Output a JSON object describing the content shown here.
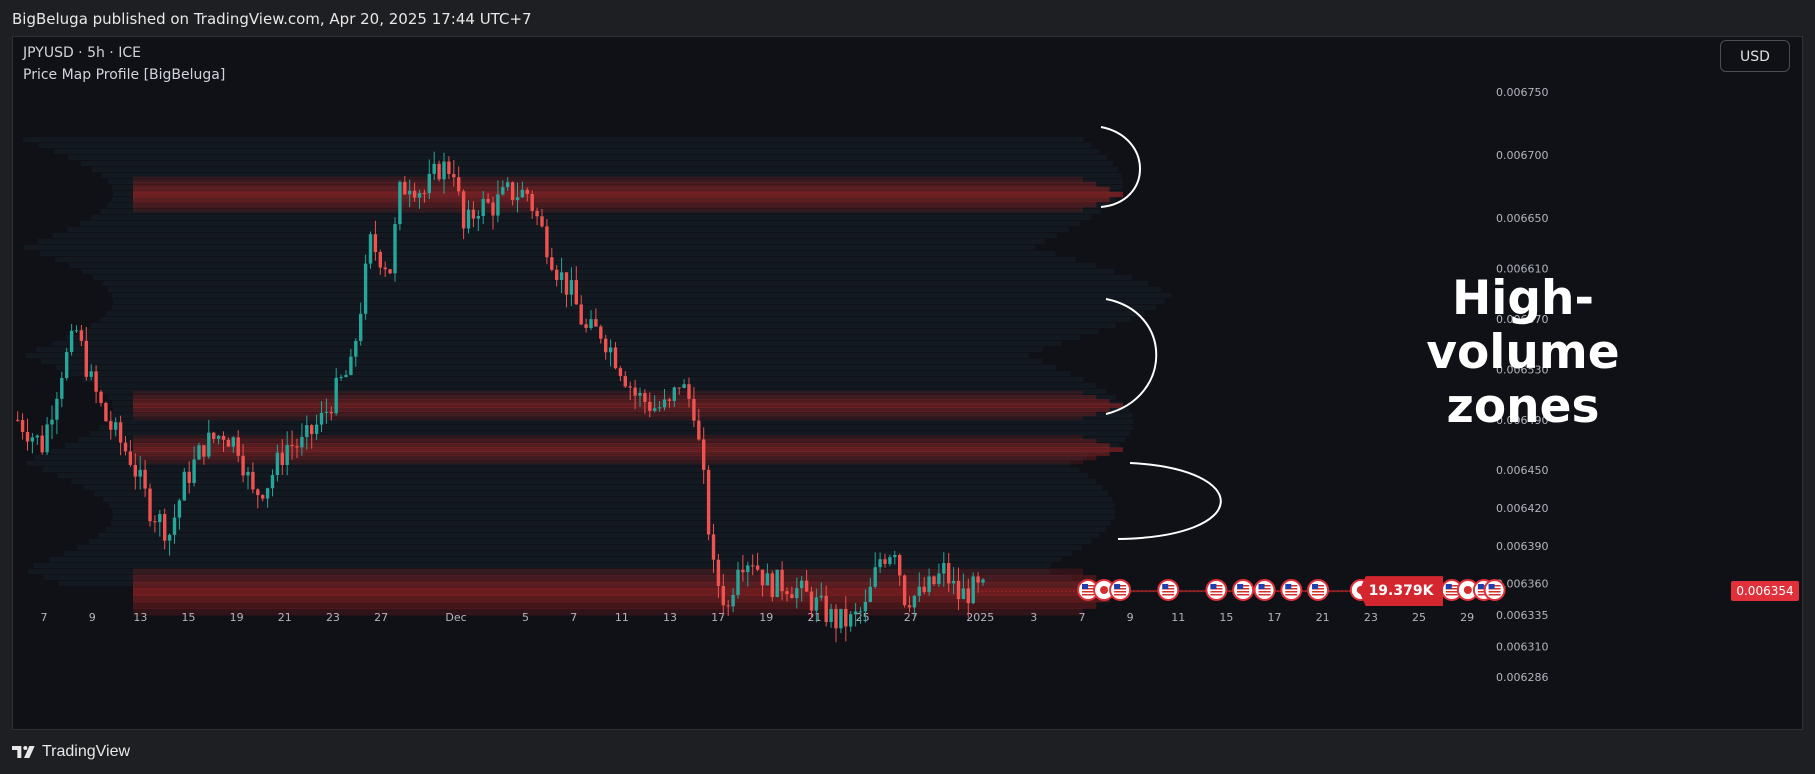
{
  "header": {
    "published_text": "BigBeluga published on TradingView.com, Apr 20, 2025 17:44 UTC+7"
  },
  "legend": {
    "symbol": "JPYUSD · 5h · ICE",
    "indicator": "Price Map Profile [BigBeluga]"
  },
  "currency_button": {
    "label": "USD"
  },
  "annotation": {
    "line1": "High-volume",
    "line2": "zones"
  },
  "footer": {
    "brand": "TradingView"
  },
  "colors": {
    "up": "#26a69a",
    "down": "#ef5350",
    "zone": "#d32f2f",
    "background": "#0f1116"
  },
  "chart_data": {
    "type": "candlestick",
    "symbol": "JPYUSD",
    "timeframe": "5h",
    "exchange": "ICE",
    "y_axis": {
      "range": [
        0.00627,
        0.00677
      ],
      "ticks": [
        "0.006750",
        "0.006700",
        "0.006650",
        "0.006610",
        "0.006570",
        "0.006530",
        "0.006490",
        "0.006450",
        "0.006420",
        "0.006390",
        "0.006360",
        "0.006335",
        "0.006310",
        "0.006286"
      ]
    },
    "x_axis": {
      "ticks": [
        {
          "label": "7",
          "bar": 3
        },
        {
          "label": "9",
          "bar": 12
        },
        {
          "label": "13",
          "bar": 21
        },
        {
          "label": "15",
          "bar": 30
        },
        {
          "label": "19",
          "bar": 39
        },
        {
          "label": "21",
          "bar": 48
        },
        {
          "label": "23",
          "bar": 57
        },
        {
          "label": "27",
          "bar": 66
        },
        {
          "label": "Dec",
          "bar": 80
        },
        {
          "label": "5",
          "bar": 93
        },
        {
          "label": "7",
          "bar": 102
        },
        {
          "label": "11",
          "bar": 111
        },
        {
          "label": "13",
          "bar": 120
        },
        {
          "label": "17",
          "bar": 129
        },
        {
          "label": "19",
          "bar": 138
        },
        {
          "label": "21",
          "bar": 147
        },
        {
          "label": "25",
          "bar": 156
        },
        {
          "label": "27",
          "bar": 165
        },
        {
          "label": "2025",
          "bar": 178
        },
        {
          "label": "3",
          "bar": 188
        },
        {
          "label": "7",
          "bar": 197
        },
        {
          "label": "9",
          "bar": 206
        },
        {
          "label": "11",
          "bar": 215
        },
        {
          "label": "15",
          "bar": 224
        },
        {
          "label": "17",
          "bar": 233
        },
        {
          "label": "21",
          "bar": 242
        },
        {
          "label": "23",
          "bar": 251
        },
        {
          "label": "25",
          "bar": 260
        },
        {
          "label": "29",
          "bar": 269
        }
      ],
      "total_bars": 276
    },
    "last_price": "0.006354",
    "last_price_value": 0.006354,
    "volume_label": "19.379K",
    "high_volume_zones": [
      {
        "low": 0.006655,
        "high": 0.006683,
        "strength": 1.0
      },
      {
        "low": 0.00649,
        "high": 0.006513,
        "strength": 0.85
      },
      {
        "low": 0.006455,
        "high": 0.006478,
        "strength": 0.9
      },
      {
        "low": 0.006335,
        "high": 0.006372,
        "strength": 1.0
      }
    ],
    "price_path": [
      [
        0,
        0.00649
      ],
      [
        5,
        0.00647
      ],
      [
        9,
        0.00653
      ],
      [
        12,
        0.00656
      ],
      [
        15,
        0.00652
      ],
      [
        18,
        0.00649
      ],
      [
        23,
        0.00646
      ],
      [
        27,
        0.00642
      ],
      [
        31,
        0.0064
      ],
      [
        34,
        0.00644
      ],
      [
        38,
        0.00647
      ],
      [
        42,
        0.00648
      ],
      [
        45,
        0.00647
      ],
      [
        48,
        0.00643
      ],
      [
        51,
        0.00644
      ],
      [
        55,
        0.00647
      ],
      [
        58,
        0.00647
      ],
      [
        62,
        0.00649
      ],
      [
        66,
        0.00652
      ],
      [
        68,
        0.00653
      ],
      [
        70,
        0.00658
      ],
      [
        72,
        0.00663
      ],
      [
        76,
        0.00661
      ],
      [
        78,
        0.00667
      ],
      [
        80,
        0.00668
      ],
      [
        83,
        0.00667
      ],
      [
        86,
        0.00669
      ],
      [
        89,
        0.00669
      ],
      [
        91,
        0.00664
      ],
      [
        94,
        0.00666
      ],
      [
        97,
        0.00666
      ],
      [
        100,
        0.00667
      ],
      [
        104,
        0.00667
      ],
      [
        107,
        0.00664
      ],
      [
        110,
        0.00661
      ],
      [
        113,
        0.00659
      ],
      [
        116,
        0.00656
      ],
      [
        119,
        0.00656
      ],
      [
        122,
        0.00654
      ],
      [
        126,
        0.00651
      ],
      [
        130,
        0.0065
      ],
      [
        133,
        0.0065
      ],
      [
        135,
        0.00652
      ],
      [
        138,
        0.0065
      ],
      [
        140,
        0.00644
      ],
      [
        142,
        0.00637
      ],
      [
        145,
        0.00634
      ],
      [
        147,
        0.00638
      ],
      [
        150,
        0.00638
      ],
      [
        153,
        0.00636
      ],
      [
        157,
        0.00636
      ],
      [
        161,
        0.00635
      ],
      [
        164,
        0.00634
      ],
      [
        167,
        0.00633
      ],
      [
        170,
        0.00633
      ],
      [
        173,
        0.00634
      ],
      [
        176,
        0.00638
      ],
      [
        179,
        0.00639
      ],
      [
        181,
        0.00635
      ],
      [
        184,
        0.00635
      ],
      [
        187,
        0.00636
      ],
      [
        189,
        0.00637
      ],
      [
        192,
        0.00635
      ],
      [
        195,
        0.006355
      ],
      [
        197,
        0.006354
      ]
    ],
    "event_markers": [
      {
        "bar": 200,
        "type": "us"
      },
      {
        "bar": 203,
        "type": "jp"
      },
      {
        "bar": 206,
        "type": "us"
      },
      {
        "bar": 215,
        "type": "us"
      },
      {
        "bar": 224,
        "type": "us"
      },
      {
        "bar": 229,
        "type": "us"
      },
      {
        "bar": 233,
        "type": "us"
      },
      {
        "bar": 238,
        "type": "us"
      },
      {
        "bar": 243,
        "type": "us"
      },
      {
        "bar": 251,
        "type": "jp"
      },
      {
        "bar": 257,
        "type": "jp"
      },
      {
        "bar": 260,
        "type": "us"
      },
      {
        "bar": 268,
        "type": "us"
      },
      {
        "bar": 271,
        "type": "jp"
      },
      {
        "bar": 274,
        "type": "us"
      },
      {
        "bar": 276,
        "type": "us"
      }
    ]
  }
}
